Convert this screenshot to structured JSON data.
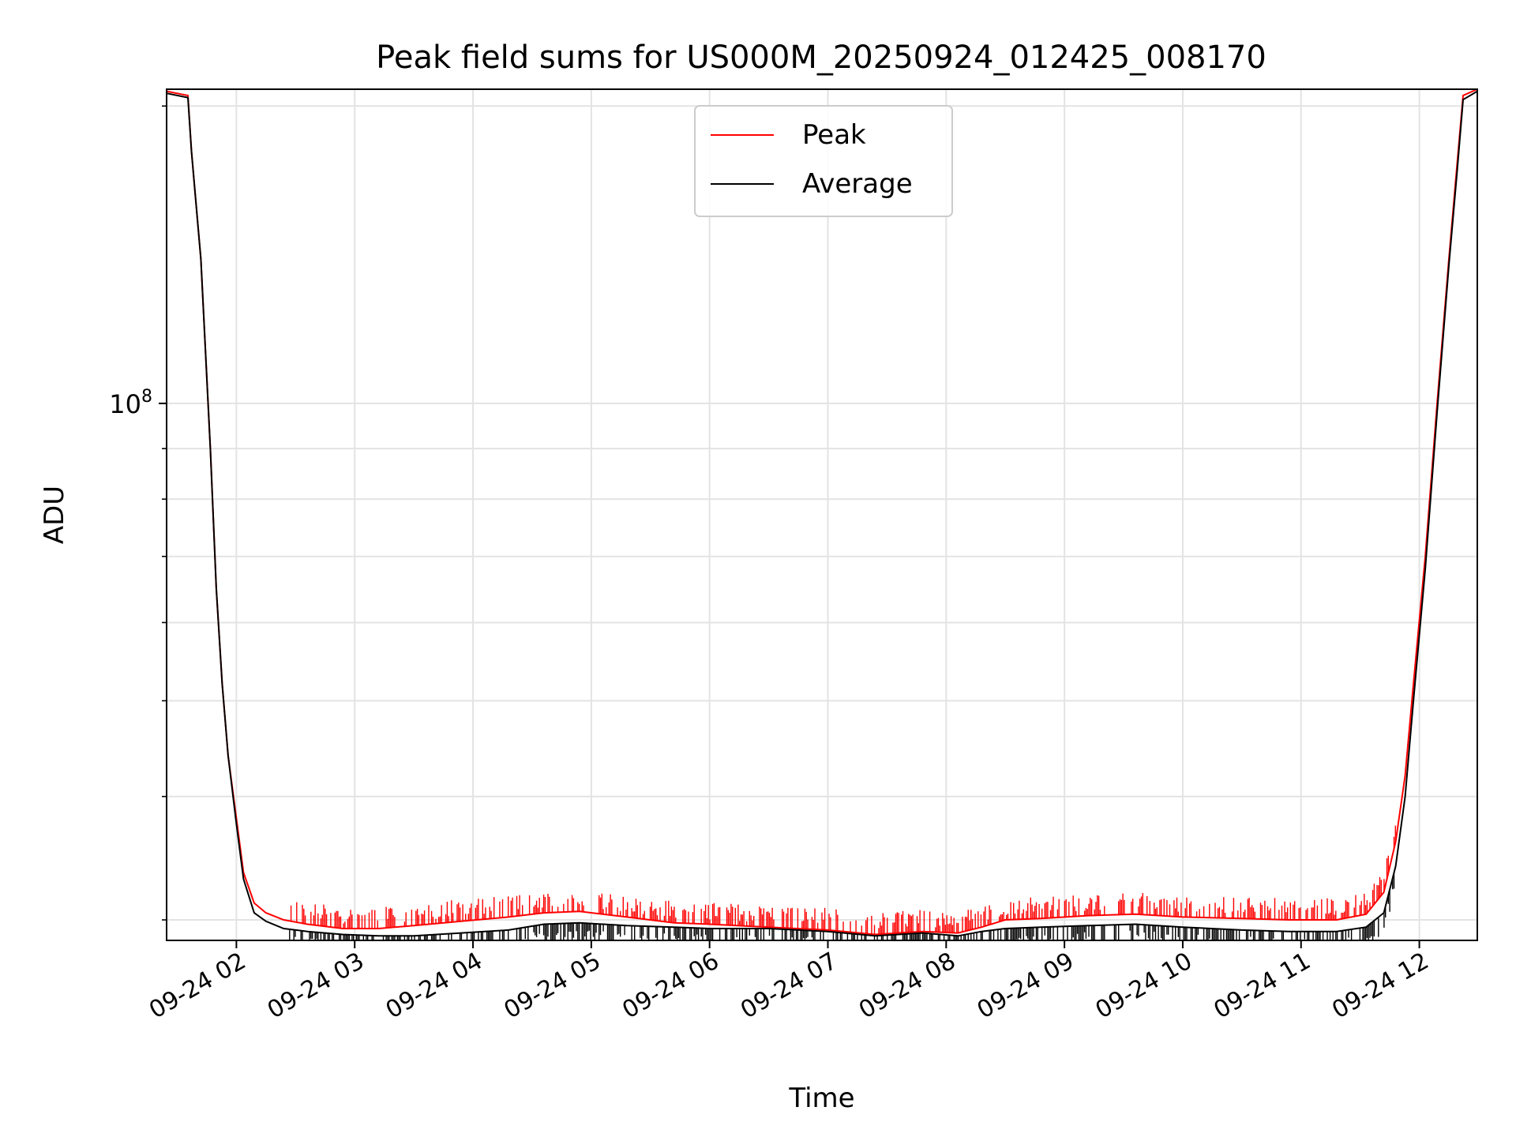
{
  "chart_data": {
    "type": "line",
    "title": "Peak field sums for US000M_20250924_012425_008170",
    "xlabel": "Time",
    "ylabel": "ADU",
    "yscale": "log",
    "grid": true,
    "legend_position": "top-center",
    "xlim": [
      1.41,
      12.49
    ],
    "ylim": [
      28600000,
      208000000
    ],
    "y_ticks": [
      {
        "value": 100000000,
        "label_base": "10",
        "label_exp": "8"
      }
    ],
    "y_minor_ticks": [
      30000000,
      40000000,
      50000000,
      60000000,
      70000000,
      80000000,
      90000000,
      200000000
    ],
    "x_ticks": [
      {
        "value": 2,
        "label": "09-24 02"
      },
      {
        "value": 3,
        "label": "09-24 03"
      },
      {
        "value": 4,
        "label": "09-24 04"
      },
      {
        "value": 5,
        "label": "09-24 05"
      },
      {
        "value": 6,
        "label": "09-24 06"
      },
      {
        "value": 7,
        "label": "09-24 07"
      },
      {
        "value": 8,
        "label": "09-24 08"
      },
      {
        "value": 9,
        "label": "09-24 09"
      },
      {
        "value": 10,
        "label": "09-24 10"
      },
      {
        "value": 11,
        "label": "09-24 11"
      },
      {
        "value": 12,
        "label": "09-24 12"
      }
    ],
    "series": [
      {
        "name": "Peak",
        "color": "#ff0000",
        "points": [
          [
            1.41,
            207000000
          ],
          [
            1.59,
            205000000
          ],
          [
            1.62,
            180000000
          ],
          [
            1.7,
            140000000
          ],
          [
            1.78,
            90000000
          ],
          [
            1.83,
            65000000
          ],
          [
            1.88,
            52000000
          ],
          [
            1.93,
            44000000
          ],
          [
            2.0,
            38000000
          ],
          [
            2.06,
            33500000
          ],
          [
            2.15,
            31200000
          ],
          [
            2.25,
            30500000
          ],
          [
            2.4,
            30000000
          ],
          [
            2.6,
            29700000
          ],
          [
            2.9,
            29400000
          ],
          [
            3.2,
            29400000
          ],
          [
            3.5,
            29600000
          ],
          [
            3.9,
            29900000
          ],
          [
            4.3,
            30200000
          ],
          [
            4.6,
            30500000
          ],
          [
            4.9,
            30600000
          ],
          [
            5.3,
            30200000
          ],
          [
            5.7,
            29800000
          ],
          [
            6.0,
            29700000
          ],
          [
            6.5,
            29500000
          ],
          [
            7.0,
            29300000
          ],
          [
            7.4,
            29000000
          ],
          [
            7.8,
            29200000
          ],
          [
            8.1,
            29100000
          ],
          [
            8.3,
            29500000
          ],
          [
            8.5,
            30000000
          ],
          [
            8.8,
            30100000
          ],
          [
            9.2,
            30300000
          ],
          [
            9.6,
            30400000
          ],
          [
            10.0,
            30200000
          ],
          [
            10.5,
            30100000
          ],
          [
            10.9,
            30000000
          ],
          [
            11.3,
            30000000
          ],
          [
            11.55,
            30400000
          ],
          [
            11.7,
            32000000
          ],
          [
            11.8,
            36000000
          ],
          [
            11.88,
            42000000
          ],
          [
            11.95,
            52000000
          ],
          [
            12.05,
            70000000
          ],
          [
            12.15,
            100000000
          ],
          [
            12.25,
            140000000
          ],
          [
            12.32,
            175000000
          ],
          [
            12.37,
            205000000
          ],
          [
            12.49,
            208000000
          ]
        ]
      },
      {
        "name": "Average",
        "color": "#000000",
        "points": [
          [
            1.41,
            206000000
          ],
          [
            1.59,
            204000000
          ],
          [
            1.62,
            180000000
          ],
          [
            1.7,
            140000000
          ],
          [
            1.78,
            90000000
          ],
          [
            1.83,
            65000000
          ],
          [
            1.88,
            52000000
          ],
          [
            1.93,
            44000000
          ],
          [
            2.0,
            37500000
          ],
          [
            2.06,
            33000000
          ],
          [
            2.15,
            30500000
          ],
          [
            2.25,
            29900000
          ],
          [
            2.4,
            29400000
          ],
          [
            2.6,
            29200000
          ],
          [
            2.9,
            29000000
          ],
          [
            3.2,
            28900000
          ],
          [
            3.5,
            28900000
          ],
          [
            3.9,
            29100000
          ],
          [
            4.3,
            29300000
          ],
          [
            4.6,
            29700000
          ],
          [
            4.9,
            29800000
          ],
          [
            5.3,
            29600000
          ],
          [
            5.7,
            29500000
          ],
          [
            6.0,
            29400000
          ],
          [
            6.5,
            29400000
          ],
          [
            7.0,
            29200000
          ],
          [
            7.4,
            28900000
          ],
          [
            7.8,
            29100000
          ],
          [
            8.1,
            28900000
          ],
          [
            8.3,
            29200000
          ],
          [
            8.5,
            29400000
          ],
          [
            8.8,
            29500000
          ],
          [
            9.2,
            29600000
          ],
          [
            9.6,
            29700000
          ],
          [
            10.0,
            29500000
          ],
          [
            10.5,
            29300000
          ],
          [
            10.9,
            29200000
          ],
          [
            11.3,
            29200000
          ],
          [
            11.55,
            29500000
          ],
          [
            11.7,
            30500000
          ],
          [
            11.8,
            34000000
          ],
          [
            11.88,
            40000000
          ],
          [
            11.95,
            50000000
          ],
          [
            12.05,
            68000000
          ],
          [
            12.15,
            98000000
          ],
          [
            12.25,
            138000000
          ],
          [
            12.32,
            172000000
          ],
          [
            12.37,
            203000000
          ],
          [
            12.49,
            207000000
          ]
        ]
      }
    ]
  }
}
